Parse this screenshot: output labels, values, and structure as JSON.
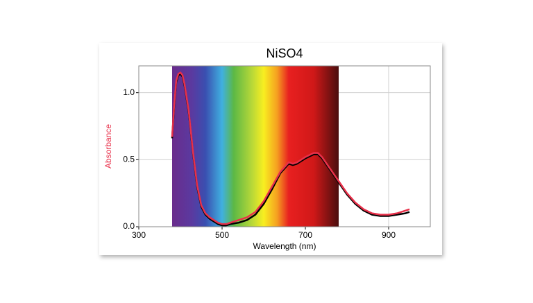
{
  "chart_data": {
    "type": "line",
    "title": "NiSO4",
    "x_label": "Wavelength (nm)",
    "y_label": "Absorbance",
    "x": [
      380,
      385,
      390,
      395,
      400,
      405,
      410,
      420,
      430,
      440,
      450,
      460,
      470,
      480,
      490,
      500,
      510,
      520,
      540,
      560,
      580,
      600,
      620,
      640,
      660,
      670,
      680,
      700,
      720,
      730,
      740,
      760,
      780,
      800,
      820,
      840,
      860,
      880,
      900,
      920,
      940,
      950
    ],
    "series": [
      {
        "color": "#000000",
        "values": [
          0.66,
          0.9,
          1.08,
          1.13,
          1.14,
          1.12,
          1.05,
          0.85,
          0.55,
          0.3,
          0.15,
          0.09,
          0.06,
          0.04,
          0.02,
          0.01,
          0.01,
          0.02,
          0.03,
          0.05,
          0.09,
          0.17,
          0.28,
          0.4,
          0.47,
          0.46,
          0.47,
          0.51,
          0.54,
          0.54,
          0.51,
          0.42,
          0.33,
          0.24,
          0.17,
          0.12,
          0.09,
          0.08,
          0.08,
          0.09,
          0.1,
          0.11
        ]
      },
      {
        "color": "#e8304a",
        "values": [
          0.67,
          0.91,
          1.09,
          1.14,
          1.15,
          1.13,
          1.06,
          0.86,
          0.56,
          0.31,
          0.16,
          0.1,
          0.07,
          0.05,
          0.03,
          0.02,
          0.02,
          0.03,
          0.05,
          0.07,
          0.11,
          0.19,
          0.3,
          0.41,
          0.48,
          0.47,
          0.48,
          0.52,
          0.55,
          0.55,
          0.52,
          0.43,
          0.34,
          0.25,
          0.18,
          0.13,
          0.1,
          0.09,
          0.09,
          0.1,
          0.12,
          0.13
        ]
      }
    ],
    "xlim": [
      300,
      1000
    ],
    "xticks": [
      300,
      500,
      700,
      900
    ],
    "ylim": [
      0,
      1.2
    ],
    "yticks": [
      {
        "value": 0,
        "label": "0.0"
      },
      0.5,
      {
        "value": 1,
        "label": "1.0"
      }
    ],
    "grid": true
  }
}
